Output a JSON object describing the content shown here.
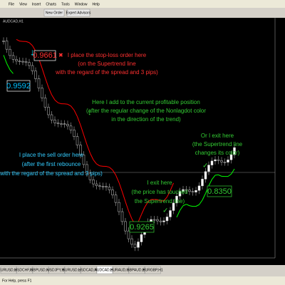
{
  "menu": [
    "File",
    "View",
    "Insert",
    "Charts",
    "Tools",
    "Window",
    "Help"
  ],
  "toolbar": {
    "new_order": "New Order",
    "expert_advisors": "Expert Advisors"
  },
  "chart": {
    "symbol": "AUDCAD,H1"
  },
  "annotations": {
    "stop_loss": {
      "price": "0.9661",
      "lines": [
        "I place the stop-loss order here",
        "(on the Supertrend line",
        "with the regard of the spread and 3 pips)"
      ]
    },
    "sell_price": "0.9592",
    "add_position": {
      "lines": [
        "Here I add to the current profitable position",
        "(after the regular change of the Nonlagdot color",
        "in the direction of the trend)"
      ]
    },
    "sell_order": {
      "lines": [
        "I place the sell order here",
        "(after the first rebounce",
        "with the regard of the spread and 3 pips)"
      ]
    },
    "or_exit": {
      "lines": [
        "Or I exit here",
        "(the Supertrend line",
        "changes its color)"
      ],
      "price": "0.8350"
    },
    "exit": {
      "lines": [
        "I exit here",
        "(the price has touched",
        "the Supertrend line)"
      ],
      "price": "0.9265"
    }
  },
  "tabs": [
    "EURUSD,H4",
    "USDCHF,H4",
    "GBPUSD,H4",
    "USDJPY,H4",
    "EURUSD,H1",
    "USDCAD,H4",
    "AUDCAD,H1",
    "EURAUD,H4",
    "GBPAUD,H4",
    "EURGBP,H1"
  ],
  "status": "For Help, press F1"
}
